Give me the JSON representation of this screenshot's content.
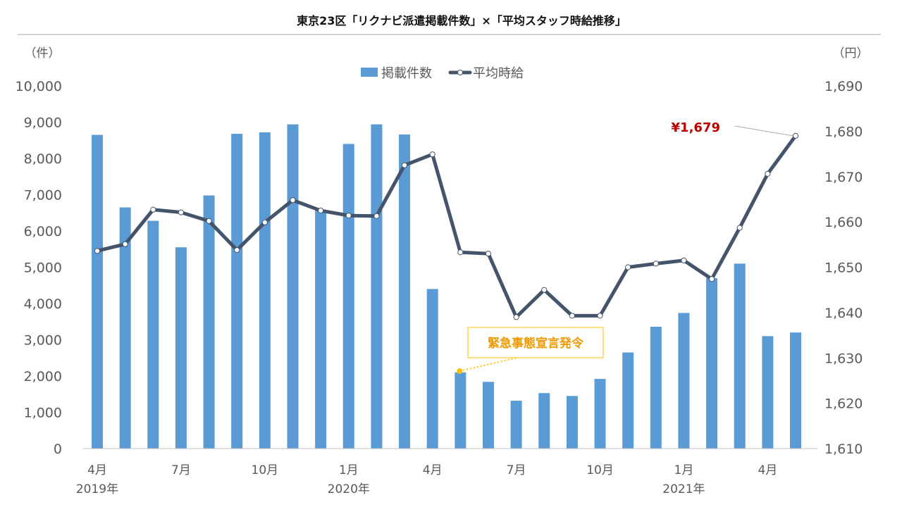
{
  "chart_data": {
    "type": "bar+line",
    "title": "東京23区「リクナビ派遣掲載件数」×「平均スタッフ時給推移」",
    "unit_left": "（件）",
    "unit_right": "（円）",
    "left_axis": {
      "min": 0,
      "max": 10000,
      "ticks": [
        "0",
        "1,000",
        "2,000",
        "3,000",
        "4,000",
        "5,000",
        "6,000",
        "7,000",
        "8,000",
        "9,000",
        "10,000"
      ]
    },
    "right_axis": {
      "min": 1610,
      "max": 1690,
      "ticks": [
        "1,610",
        "1,620",
        "1,630",
        "1,640",
        "1,650",
        "1,660",
        "1,670",
        "1,680",
        "1,690"
      ]
    },
    "x_tick_labels": [
      {
        "index": 0,
        "label": "4月"
      },
      {
        "index": 3,
        "label": "7月"
      },
      {
        "index": 6,
        "label": "10月"
      },
      {
        "index": 9,
        "label": "1月"
      },
      {
        "index": 12,
        "label": "4月"
      },
      {
        "index": 15,
        "label": "7月"
      },
      {
        "index": 18,
        "label": "10月"
      },
      {
        "index": 21,
        "label": "1月"
      },
      {
        "index": 24,
        "label": "4月"
      }
    ],
    "year_labels": [
      {
        "index": 0,
        "label": "2019年"
      },
      {
        "index": 9,
        "label": "2020年"
      },
      {
        "index": 21,
        "label": "2021年"
      }
    ],
    "series": [
      {
        "name": "掲載件数",
        "type": "bar",
        "axis": "left",
        "color": "#5b9bd5",
        "values": [
          8650,
          6650,
          6280,
          5550,
          6980,
          8680,
          8720,
          8940,
          6560,
          8400,
          8940,
          8660,
          4400,
          2100,
          1840,
          1320,
          1530,
          1450,
          1920,
          2650,
          3360,
          3740,
          4700,
          5100,
          3100,
          3200
        ]
      },
      {
        "name": "平均時給",
        "type": "line",
        "axis": "right",
        "color": "#44546a",
        "values": [
          1653.6,
          1655.1,
          1662.7,
          1662.1,
          1660.2,
          1653.8,
          1659.9,
          1664.8,
          1662.5,
          1661.4,
          1661.3,
          1672.5,
          1674.9,
          1653.3,
          1653.0,
          1639.0,
          1645.0,
          1639.3,
          1639.3,
          1650.0,
          1650.8,
          1651.5,
          1647.4,
          1658.7,
          1670.6,
          1679.0
        ]
      }
    ],
    "annotations": [
      {
        "text": "緊急事態宣言発令",
        "index": 13,
        "color": "#ffc000"
      },
      {
        "text": "¥1,679",
        "index": 25,
        "color": "#c00000"
      }
    ],
    "legend_position": "top-center",
    "grid": false
  }
}
